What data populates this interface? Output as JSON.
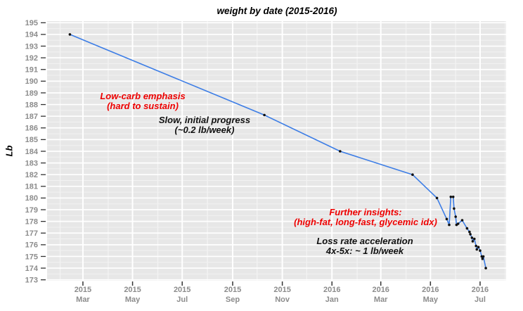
{
  "title": "weight by date (2015-2016)",
  "chart_data": {
    "type": "line",
    "title": "weight by date (2015-2016)",
    "xlabel": "",
    "ylabel": "Lb",
    "ylim": [
      173,
      195
    ],
    "y_tick_step": 1,
    "y_tick_labels": [
      "173",
      "174",
      "175",
      "176",
      "177",
      "178",
      "179",
      "180",
      "181",
      "182",
      "183",
      "184",
      "185",
      "186",
      "187",
      "188",
      "189",
      "190",
      "191",
      "192",
      "193",
      "194",
      "195"
    ],
    "x_range": [
      "2015-01-16",
      "2016-08-02"
    ],
    "x_ticks": [
      {
        "date": "2015-03-01",
        "year": "2015",
        "month": "Mar"
      },
      {
        "date": "2015-05-01",
        "year": "2015",
        "month": "May"
      },
      {
        "date": "2015-07-01",
        "year": "2015",
        "month": "Jul"
      },
      {
        "date": "2015-09-01",
        "year": "2015",
        "month": "Sep"
      },
      {
        "date": "2015-11-01",
        "year": "2015",
        "month": "Nov"
      },
      {
        "date": "2016-01-01",
        "year": "2016",
        "month": "Jan"
      },
      {
        "date": "2016-03-01",
        "year": "2016",
        "month": "Mar"
      },
      {
        "date": "2016-05-01",
        "year": "2016",
        "month": "May"
      },
      {
        "date": "2016-07-01",
        "year": "2016",
        "month": "Jul"
      }
    ],
    "grid": {
      "major": "white lines at 1 lb and labeled months",
      "minor": "faint lines at 0.5 lb and unlabeled months",
      "panel": "light gray"
    },
    "legend": "none",
    "series": [
      {
        "name": "weight",
        "points": [
          {
            "date": "2015-02-13",
            "lb": 194.0
          },
          {
            "date": "2015-10-10",
            "lb": 187.1
          },
          {
            "date": "2016-01-11",
            "lb": 184.0
          },
          {
            "date": "2016-04-09",
            "lb": 182.0
          },
          {
            "date": "2016-05-09",
            "lb": 180.0
          },
          {
            "date": "2016-05-21",
            "lb": 178.2
          },
          {
            "date": "2016-05-24",
            "lb": 177.7
          },
          {
            "date": "2016-05-26",
            "lb": 180.1
          },
          {
            "date": "2016-05-29",
            "lb": 180.1
          },
          {
            "date": "2016-05-30",
            "lb": 179.1
          },
          {
            "date": "2016-06-01",
            "lb": 178.4
          },
          {
            "date": "2016-06-02",
            "lb": 177.7
          },
          {
            "date": "2016-06-04",
            "lb": 177.8
          },
          {
            "date": "2016-06-09",
            "lb": 178.1
          },
          {
            "date": "2016-06-15",
            "lb": 177.4
          },
          {
            "date": "2016-06-18",
            "lb": 177.1
          },
          {
            "date": "2016-06-19",
            "lb": 176.9
          },
          {
            "date": "2016-06-21",
            "lb": 176.6
          },
          {
            "date": "2016-06-22",
            "lb": 176.3
          },
          {
            "date": "2016-06-24",
            "lb": 176.5
          },
          {
            "date": "2016-06-26",
            "lb": 175.9
          },
          {
            "date": "2016-06-27",
            "lb": 175.6
          },
          {
            "date": "2016-06-29",
            "lb": 175.8
          },
          {
            "date": "2016-07-01",
            "lb": 175.5
          },
          {
            "date": "2016-07-03",
            "lb": 175.0
          },
          {
            "date": "2016-07-04",
            "lb": 174.8
          },
          {
            "date": "2016-07-05",
            "lb": 175.0
          },
          {
            "date": "2016-07-08",
            "lb": 174.0
          }
        ]
      }
    ]
  },
  "annotations": {
    "low_carb": {
      "line1": "Low-carb emphasis",
      "line2": "(hard to sustain)",
      "color": "#ee0000"
    },
    "slow_progress": {
      "line1": "Slow, initial progress",
      "line2": "(~0.2 lb/week)",
      "color": "#111111"
    },
    "further_insights": {
      "line1": "Further insights:",
      "line2": "(high-fat, long-fast, glycemic idx)",
      "color": "#ee0000"
    },
    "loss_rate": {
      "line1": "Loss rate acceleration",
      "line2": "4x-5x: ~ 1 lb/week",
      "color": "#111111"
    }
  },
  "colors": {
    "panel_bg": "#e7e7e7",
    "grid_major": "#ffffff",
    "grid_minor": "#f2f2f2",
    "axis_text": "#8c8c8c",
    "tick_mark": "#333333",
    "line": "#3c7de6",
    "marker": "#111111",
    "title_text": "#000000"
  }
}
